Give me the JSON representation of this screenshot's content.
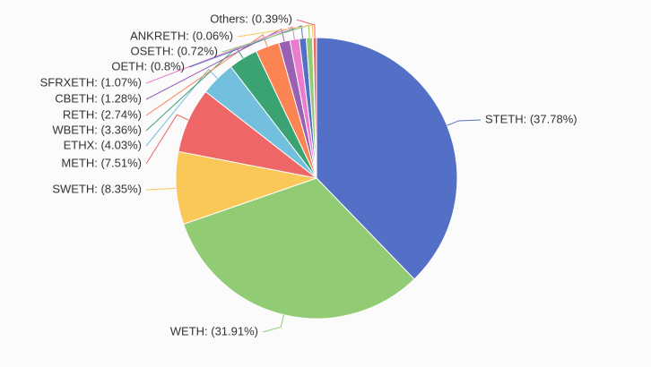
{
  "chart_data": {
    "type": "pie",
    "start_angle_deg": 90,
    "clockwise": true,
    "slices": [
      {
        "label": "STETH: (37.78%)",
        "name": "STETH",
        "value": 37.78,
        "color": "#5470c6"
      },
      {
        "label": "WETH: (31.91%)",
        "name": "WETH",
        "value": 31.91,
        "color": "#91cc75"
      },
      {
        "label": "SWETH: (8.35%)",
        "name": "SWETH",
        "value": 8.35,
        "color": "#fac858"
      },
      {
        "label": "METH: (7.51%)",
        "name": "METH",
        "value": 7.51,
        "color": "#ee6666"
      },
      {
        "label": "ETHX: (4.03%)",
        "name": "ETHX",
        "value": 4.03,
        "color": "#73c0de"
      },
      {
        "label": "WBETH: (3.36%)",
        "name": "WBETH",
        "value": 3.36,
        "color": "#3ba272"
      },
      {
        "label": "RETH: (2.74%)",
        "name": "RETH",
        "value": 2.74,
        "color": "#fc8452"
      },
      {
        "label": "CBETH: (1.28%)",
        "name": "CBETH",
        "value": 1.28,
        "color": "#9a60b4"
      },
      {
        "label": "SFRXETH: (1.07%)",
        "name": "SFRXETH",
        "value": 1.07,
        "color": "#ea7ccc"
      },
      {
        "label": "OETH: (0.8%)",
        "name": "OETH",
        "value": 0.8,
        "color": "#5470c6"
      },
      {
        "label": "OSETH: (0.72%)",
        "name": "OSETH",
        "value": 0.72,
        "color": "#91cc75"
      },
      {
        "label": "ANKRETH: (0.06%)",
        "name": "ANKRETH",
        "value": 0.06,
        "color": "#fac858"
      },
      {
        "label": "Others: (0.39%)",
        "name": "Others",
        "value": 0.39,
        "color": "#ee6666"
      }
    ]
  }
}
